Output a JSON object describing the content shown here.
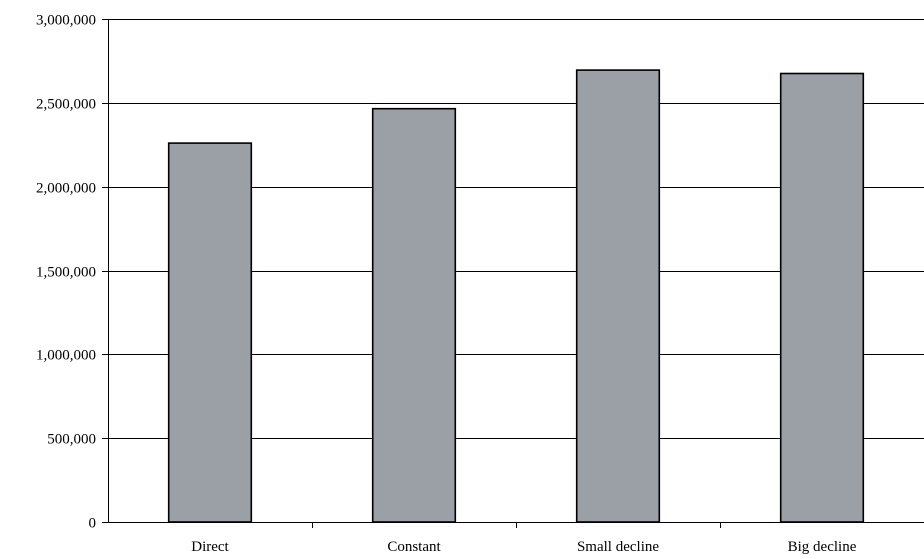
{
  "chart_data": {
    "type": "bar",
    "title": "",
    "xlabel": "",
    "ylabel": "",
    "categories": [
      "Direct",
      "Constant",
      "Small decline",
      "Big decline"
    ],
    "values": [
      2260000,
      2465000,
      2695000,
      2675000
    ],
    "ylim": [
      0,
      3000000
    ],
    "yticks": [
      0,
      500000,
      1000000,
      1500000,
      2000000,
      2500000,
      3000000
    ],
    "ytick_labels": [
      "0",
      "500,000",
      "1,000,000",
      "1,500,000",
      "2,000,000",
      "2,500,000",
      "3,000,000"
    ],
    "grid": true,
    "legend": "none",
    "colors": {
      "bar_fill": "#9aa0a6",
      "bar_stroke": "#000000",
      "gridline": "#000000",
      "axis": "#000000"
    }
  }
}
